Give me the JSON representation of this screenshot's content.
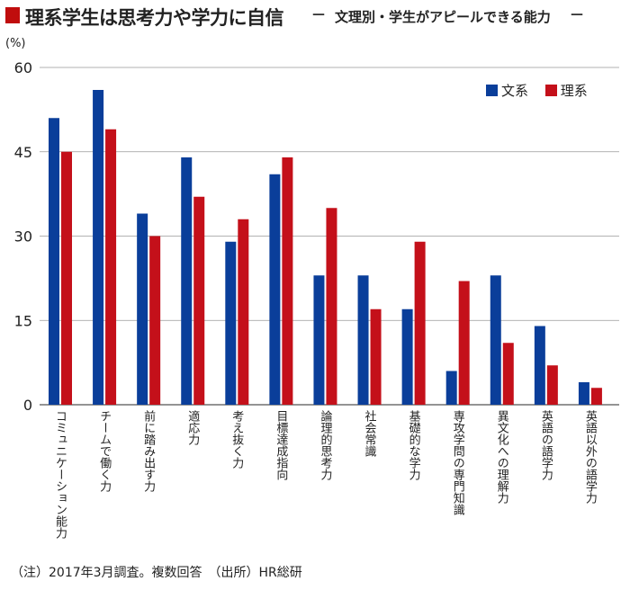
{
  "header": {
    "title": "理系学生は思考力や学力に自信",
    "dash_left": "—",
    "subtitle": "文理別・学生がアピールできる能力",
    "dash_right": "—"
  },
  "footer": {
    "note": "（注）2017年3月調査。複数回答　（出所）HR総研"
  },
  "colors": {
    "bunkei": "#0a3e9a",
    "rikei": "#c4101a",
    "accent": "#c00d0d",
    "grid": "#999999"
  },
  "chart_data": {
    "type": "bar",
    "unit_label": "(%)",
    "ylim": [
      0,
      60
    ],
    "yticks": [
      0,
      15,
      30,
      45,
      60
    ],
    "grid": true,
    "legend_position": "top-right",
    "categories": [
      "コミュニケーション能力",
      "チームで働く力",
      "前に踏み出す力",
      "適応力",
      "考え抜く力",
      "目標達成指向",
      "論理的思考力",
      "社会常識",
      "基礎的な学力",
      "専攻学問の専門知識",
      "異文化への理解力",
      "英語の語学力",
      "英語以外の語学力"
    ],
    "series": [
      {
        "name": "文系",
        "values": [
          51,
          56,
          34,
          44,
          29,
          41,
          23,
          23,
          17,
          6,
          23,
          14,
          4
        ]
      },
      {
        "name": "理系",
        "values": [
          45,
          49,
          30,
          37,
          33,
          44,
          35,
          17,
          29,
          22,
          11,
          7,
          3
        ]
      }
    ]
  }
}
